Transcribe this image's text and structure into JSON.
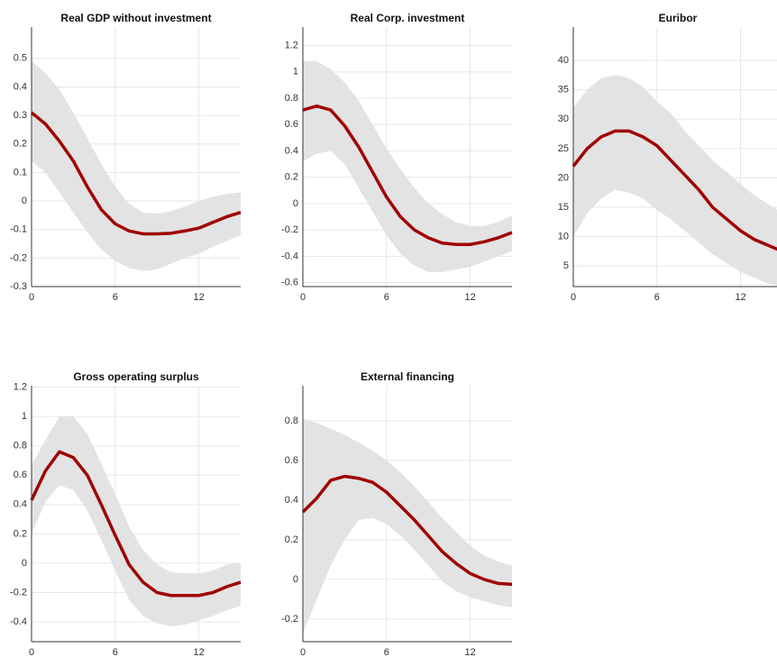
{
  "chart_data": [
    {
      "type": "line",
      "title": "Real GDP without investment",
      "color": "#a00000",
      "band_color": "#e3e3e3",
      "grid": true,
      "x": [
        0,
        1,
        2,
        3,
        4,
        5,
        6,
        7,
        8,
        9,
        10,
        11,
        12,
        13,
        14,
        15
      ],
      "values": [
        0.31,
        0.27,
        0.21,
        0.14,
        0.05,
        -0.03,
        -0.08,
        -0.105,
        -0.115,
        -0.115,
        -0.113,
        -0.105,
        -0.095,
        -0.075,
        -0.055,
        -0.04
      ],
      "upper": [
        0.49,
        0.45,
        0.39,
        0.31,
        0.22,
        0.13,
        0.05,
        -0.01,
        -0.04,
        -0.045,
        -0.035,
        -0.02,
        0,
        0.015,
        0.025,
        0.03
      ],
      "lower": [
        0.14,
        0.1,
        0.03,
        -0.04,
        -0.11,
        -0.17,
        -0.21,
        -0.235,
        -0.245,
        -0.24,
        -0.22,
        -0.2,
        -0.185,
        -0.16,
        -0.14,
        -0.12
      ],
      "xlim": [
        0,
        15
      ],
      "xticks": [
        0,
        6,
        12
      ],
      "ylim": [
        -0.3,
        0.61
      ],
      "yticks": [
        -0.3,
        -0.2,
        -0.1,
        0,
        0.1,
        0.2,
        0.3,
        0.4,
        0.5
      ]
    },
    {
      "type": "line",
      "title": "Real Corp. investment",
      "color": "#a00000",
      "band_color": "#e3e3e3",
      "grid": true,
      "x": [
        0,
        1,
        2,
        3,
        4,
        5,
        6,
        7,
        8,
        9,
        10,
        11,
        12,
        13,
        14,
        15
      ],
      "values": [
        0.71,
        0.74,
        0.71,
        0.59,
        0.43,
        0.24,
        0.05,
        -0.1,
        -0.2,
        -0.26,
        -0.3,
        -0.31,
        -0.31,
        -0.29,
        -0.26,
        -0.22
      ],
      "upper": [
        1.08,
        1.08,
        1.02,
        0.92,
        0.78,
        0.6,
        0.42,
        0.26,
        0.12,
        0.0,
        -0.08,
        -0.14,
        -0.17,
        -0.17,
        -0.14,
        -0.09
      ],
      "lower": [
        0.32,
        0.38,
        0.4,
        0.3,
        0.12,
        -0.06,
        -0.24,
        -0.38,
        -0.47,
        -0.52,
        -0.52,
        -0.5,
        -0.48,
        -0.44,
        -0.4,
        -0.36
      ],
      "xlim": [
        0,
        15
      ],
      "xticks": [
        0,
        6,
        12
      ],
      "ylim": [
        -0.63,
        1.34
      ],
      "yticks": [
        -0.6,
        -0.4,
        -0.2,
        0,
        0.2,
        0.4,
        0.6,
        0.8,
        1,
        1.2
      ]
    },
    {
      "type": "line",
      "title": "Euribor",
      "color": "#a00000",
      "band_color": "#e3e3e3",
      "grid": true,
      "x": [
        0,
        1,
        2,
        3,
        4,
        5,
        6,
        7,
        8,
        9,
        10,
        11,
        12,
        13,
        14,
        15
      ],
      "values": [
        22,
        25,
        27,
        28,
        28,
        27,
        25.5,
        23,
        20.5,
        18,
        15,
        13,
        11,
        9.5,
        8.5,
        7.5
      ],
      "upper": [
        32,
        35,
        37,
        37.5,
        37,
        35.5,
        33,
        31,
        28,
        25.5,
        23,
        21,
        19,
        17,
        15.5,
        14
      ],
      "lower": [
        10,
        14,
        16.5,
        18,
        17.5,
        16.5,
        14.5,
        13,
        11,
        9,
        7,
        5.5,
        4,
        3,
        2,
        1.5
      ],
      "xlim": [
        0,
        15
      ],
      "xticks": [
        0,
        6,
        12
      ],
      "ylim": [
        1.5,
        45.7
      ],
      "yticks": [
        5,
        10,
        15,
        20,
        25,
        30,
        35,
        40
      ]
    },
    {
      "type": "line",
      "title": "Gross operating surplus",
      "color": "#a00000",
      "band_color": "#e3e3e3",
      "grid": true,
      "x": [
        0,
        1,
        2,
        3,
        4,
        5,
        6,
        7,
        8,
        9,
        10,
        11,
        12,
        13,
        14,
        15
      ],
      "values": [
        0.43,
        0.63,
        0.76,
        0.72,
        0.6,
        0.4,
        0.19,
        -0.01,
        -0.13,
        -0.2,
        -0.22,
        -0.22,
        -0.22,
        -0.2,
        -0.16,
        -0.13
      ],
      "upper": [
        0.67,
        0.84,
        1.0,
        1.0,
        0.88,
        0.68,
        0.47,
        0.25,
        0.09,
        -0.01,
        -0.06,
        -0.07,
        -0.07,
        -0.05,
        -0.01,
        0.0
      ],
      "lower": [
        0.2,
        0.42,
        0.53,
        0.5,
        0.36,
        0.16,
        -0.05,
        -0.25,
        -0.36,
        -0.41,
        -0.43,
        -0.42,
        -0.39,
        -0.36,
        -0.32,
        -0.29
      ],
      "xlim": [
        0,
        15
      ],
      "xticks": [
        0,
        6,
        12
      ],
      "ylim": [
        -0.535,
        1.21
      ],
      "yticks": [
        -0.4,
        -0.2,
        0,
        0.2,
        0.4,
        0.6,
        0.8,
        1,
        1.2
      ]
    },
    {
      "type": "line",
      "title": "External financing",
      "color": "#a00000",
      "band_color": "#e3e3e3",
      "grid": true,
      "x": [
        0,
        1,
        2,
        3,
        4,
        5,
        6,
        7,
        8,
        9,
        10,
        11,
        12,
        13,
        14,
        15
      ],
      "values": [
        0.34,
        0.41,
        0.5,
        0.52,
        0.51,
        0.49,
        0.44,
        0.37,
        0.3,
        0.22,
        0.14,
        0.08,
        0.03,
        0.0,
        -0.02,
        -0.025
      ],
      "upper": [
        0.81,
        0.79,
        0.76,
        0.73,
        0.69,
        0.65,
        0.6,
        0.54,
        0.47,
        0.39,
        0.31,
        0.24,
        0.17,
        0.12,
        0.09,
        0.07
      ],
      "lower": [
        -0.27,
        -0.1,
        0.07,
        0.2,
        0.3,
        0.31,
        0.28,
        0.22,
        0.15,
        0.07,
        -0.01,
        -0.06,
        -0.09,
        -0.11,
        -0.13,
        -0.14
      ],
      "xlim": [
        0,
        15
      ],
      "xticks": [
        0,
        6,
        12
      ],
      "ylim": [
        -0.314,
        0.977
      ],
      "yticks": [
        -0.2,
        0,
        0.2,
        0.4,
        0.6,
        0.8
      ]
    }
  ]
}
